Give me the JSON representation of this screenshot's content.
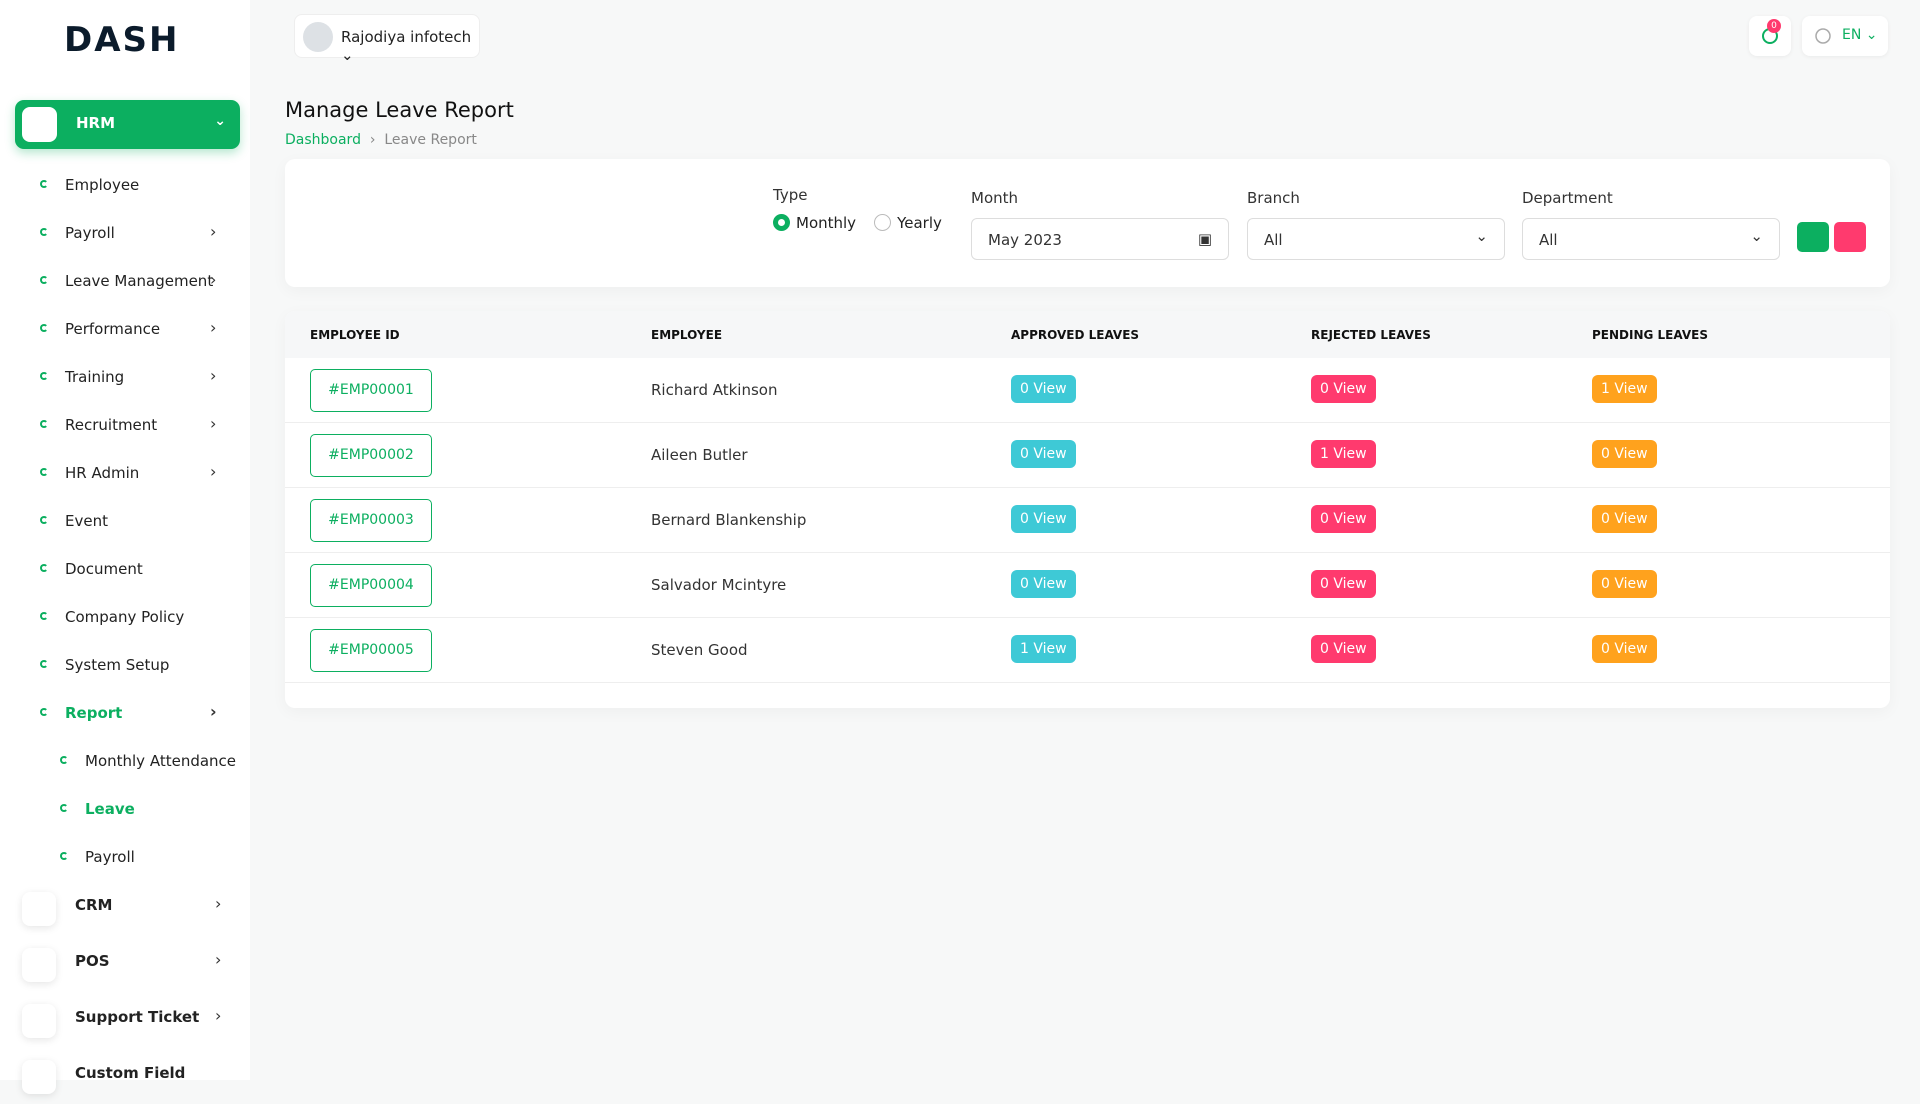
{
  "brand": "DASH",
  "header": {
    "company": "Rajodiya infotech",
    "notifications": "0",
    "language": "EN"
  },
  "sidebar": {
    "group": "HRM",
    "items": [
      {
        "label": "Employee",
        "arrow": false,
        "active": false,
        "sub": false
      },
      {
        "label": "Payroll",
        "arrow": true,
        "active": false,
        "sub": false
      },
      {
        "label": "Leave Management",
        "arrow": true,
        "active": false,
        "sub": false
      },
      {
        "label": "Performance",
        "arrow": true,
        "active": false,
        "sub": false
      },
      {
        "label": "Training",
        "arrow": true,
        "active": false,
        "sub": false
      },
      {
        "label": "Recruitment",
        "arrow": true,
        "active": false,
        "sub": false
      },
      {
        "label": "HR Admin",
        "arrow": true,
        "active": false,
        "sub": false
      },
      {
        "label": "Event",
        "arrow": false,
        "active": false,
        "sub": false
      },
      {
        "label": "Document",
        "arrow": false,
        "active": false,
        "sub": false
      },
      {
        "label": "Company Policy",
        "arrow": false,
        "active": false,
        "sub": false
      },
      {
        "label": "System Setup",
        "arrow": false,
        "active": false,
        "sub": false
      },
      {
        "label": "Report",
        "arrow": true,
        "active": true,
        "sub": false
      },
      {
        "label": "Monthly Attendance",
        "arrow": false,
        "active": false,
        "sub": true
      },
      {
        "label": "Leave",
        "arrow": false,
        "active": true,
        "sub": true
      },
      {
        "label": "Payroll",
        "arrow": false,
        "active": false,
        "sub": true
      }
    ],
    "modules": [
      {
        "label": "CRM",
        "arrow": true
      },
      {
        "label": "POS",
        "arrow": true
      },
      {
        "label": "Support Ticket",
        "arrow": true
      },
      {
        "label": "Custom Field",
        "arrow": false
      }
    ]
  },
  "page": {
    "title": "Manage Leave Report",
    "breadcrumb": [
      "Dashboard",
      "Leave Report"
    ]
  },
  "filters": {
    "type_label": "Type",
    "type_options": [
      "Monthly",
      "Yearly"
    ],
    "type_selected": 0,
    "month_label": "Month",
    "month_value": "May 2023",
    "branch_label": "Branch",
    "branch_value": "All",
    "department_label": "Department",
    "department_value": "All"
  },
  "table": {
    "headers": [
      "EMPLOYEE ID",
      "EMPLOYEE",
      "APPROVED LEAVES",
      "REJECTED LEAVES",
      "PENDING LEAVES"
    ],
    "rows": [
      [
        "#EMP00001",
        "Richard Atkinson",
        "0 View",
        "0 View",
        "1 View"
      ],
      [
        "#EMP00002",
        "Aileen Butler",
        "0 View",
        "1 View",
        "0 View"
      ],
      [
        "#EMP00003",
        "Bernard Blankenship",
        "0 View",
        "0 View",
        "0 View"
      ],
      [
        "#EMP00004",
        "Salvador Mcintyre",
        "0 View",
        "0 View",
        "0 View"
      ],
      [
        "#EMP00005",
        "Steven Good",
        "1 View",
        "0 View",
        "0 View"
      ]
    ]
  }
}
